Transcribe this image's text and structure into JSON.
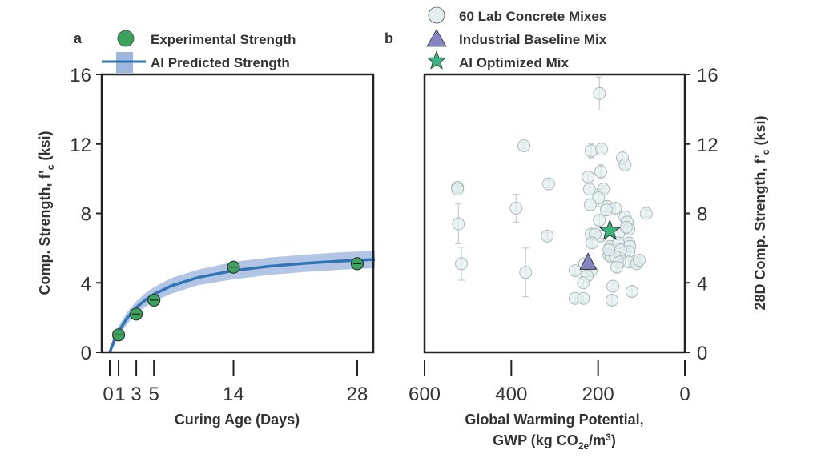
{
  "chart_data": [
    {
      "panel_label": "a",
      "type": "line",
      "xlabel": "Curing Age (Days)",
      "ylabel_parts": [
        "Comp. Strength, f’",
        "c",
        " (ksi)"
      ],
      "xlim": [
        0,
        30
      ],
      "ylim": [
        0,
        16
      ],
      "xticks": [
        0,
        1,
        3,
        5,
        14,
        28
      ],
      "xtick_labels": [
        "0",
        "1",
        "3",
        "5",
        "14",
        "28"
      ],
      "yticks": [
        0,
        4,
        8,
        12,
        16
      ],
      "legend": [
        "Experimental Strength",
        "AI Predicted Strength"
      ],
      "legend_placement": "top",
      "colors": {
        "experimental": "#3aa35c",
        "predicted_line": "#2f74b5",
        "predicted_band": "#9fb6de"
      },
      "experimental": {
        "x": [
          1,
          3,
          5,
          14,
          28
        ],
        "y": [
          1.0,
          2.2,
          3.0,
          4.9,
          5.1
        ]
      },
      "predicted": {
        "x": [
          0,
          0.5,
          1,
          2,
          3,
          4,
          5,
          7,
          10,
          14,
          18,
          22,
          26,
          30
        ],
        "y": [
          0,
          0.66,
          1.19,
          1.99,
          2.57,
          3.0,
          3.34,
          3.83,
          4.31,
          4.7,
          4.95,
          5.12,
          5.25,
          5.35
        ],
        "band": [
          0.25,
          0.3,
          0.3,
          0.35,
          0.35,
          0.4,
          0.4,
          0.45,
          0.45,
          0.5,
          0.5,
          0.5,
          0.5,
          0.5
        ]
      }
    },
    {
      "panel_label": "b",
      "type": "scatter",
      "xlabel_line1": "Global Warming Potential,",
      "xlabel_line2_parts": [
        "GWP (kg CO",
        "2e",
        "/m",
        "3",
        ")"
      ],
      "ylabel_parts": [
        "28D Comp. Strength, f’",
        "c",
        " (ksi)"
      ],
      "xlim": [
        600,
        0
      ],
      "ylim": [
        0,
        16
      ],
      "xticks": [
        600,
        400,
        200,
        0
      ],
      "yticks": [
        0,
        4,
        8,
        12,
        16
      ],
      "y_axis_side": "right",
      "legend": [
        "60 Lab Concrete Mixes",
        "Industrial Baseline Mix",
        "AI Optimized Mix"
      ],
      "legend_placement": "top",
      "colors": {
        "lab": "#e3eef0",
        "baseline": "#8585c4",
        "optimized": "#3bb37e"
      },
      "lab_mixes": [
        [
          197,
          14.9,
          0.95
        ],
        [
          371,
          11.9,
          0.2
        ],
        [
          216,
          11.6,
          0.4
        ],
        [
          192,
          11.7,
          0.2
        ],
        [
          144,
          11.2,
          0.4
        ],
        [
          138,
          10.8,
          0.2
        ],
        [
          194,
          10.4,
          0.4
        ],
        [
          223,
          10.1,
          0.3
        ],
        [
          314,
          9.7,
          0.2
        ],
        [
          524,
          9.5,
          0.2
        ],
        [
          524,
          9.4,
          0.2
        ],
        [
          220,
          9.4,
          0.3
        ],
        [
          188,
          9.4,
          0.2
        ],
        [
          199,
          8.9,
          0.5
        ],
        [
          389,
          8.3,
          0.8
        ],
        [
          218,
          8.5,
          0.3
        ],
        [
          179,
          8.4,
          0.3
        ],
        [
          160,
          8.3,
          0.3
        ],
        [
          89,
          8.0,
          0.2
        ],
        [
          181,
          8.2,
          0.3
        ],
        [
          197,
          7.6,
          0.3
        ],
        [
          138,
          7.8,
          0.3
        ],
        [
          133,
          7.5,
          0.3
        ],
        [
          129,
          7.1,
          0.3
        ],
        [
          522,
          7.4,
          1.15
        ],
        [
          216,
          6.8,
          0.3
        ],
        [
          317,
          6.7,
          0.2
        ],
        [
          194,
          6.7,
          0.3
        ],
        [
          153,
          6.8,
          0.3
        ],
        [
          207,
          6.8,
          0.3
        ],
        [
          214,
          6.3,
          0.3
        ],
        [
          172,
          6.1,
          0.3
        ],
        [
          129,
          6.3,
          0.3
        ],
        [
          127,
          6.1,
          0.3
        ],
        [
          153,
          6.3,
          0.3
        ],
        [
          135,
          7.2,
          0.3
        ],
        [
          175,
          5.6,
          0.3
        ],
        [
          170,
          5.5,
          0.3
        ],
        [
          148,
          5.5,
          0.3
        ],
        [
          129,
          5.8,
          0.3
        ],
        [
          148,
          5.9,
          0.3
        ],
        [
          160,
          5.5,
          0.3
        ],
        [
          175,
          5.9,
          0.3
        ],
        [
          151,
          5.2,
          0.3
        ],
        [
          157,
          4.9,
          0.3
        ],
        [
          129,
          5.2,
          0.3
        ],
        [
          111,
          5.1,
          0.2
        ],
        [
          105,
          5.3,
          0.2
        ],
        [
          515,
          5.1,
          0.95
        ],
        [
          367,
          4.6,
          1.4
        ],
        [
          253,
          4.7,
          0.2
        ],
        [
          231,
          5.1,
          0.3
        ],
        [
          216,
          4.7,
          0.2
        ],
        [
          225,
          4.4,
          0.2
        ],
        [
          234,
          4.0,
          0.2
        ],
        [
          166,
          3.8,
          0.2
        ],
        [
          122,
          3.5,
          0.3
        ],
        [
          253,
          3.1,
          0.2
        ],
        [
          234,
          3.1,
          0.2
        ],
        [
          168,
          3.0,
          0.3
        ]
      ],
      "industrial_baseline": {
        "x": 223,
        "y": 5.1
      },
      "ai_optimized": {
        "x": 173,
        "y": 7.0
      }
    }
  ]
}
